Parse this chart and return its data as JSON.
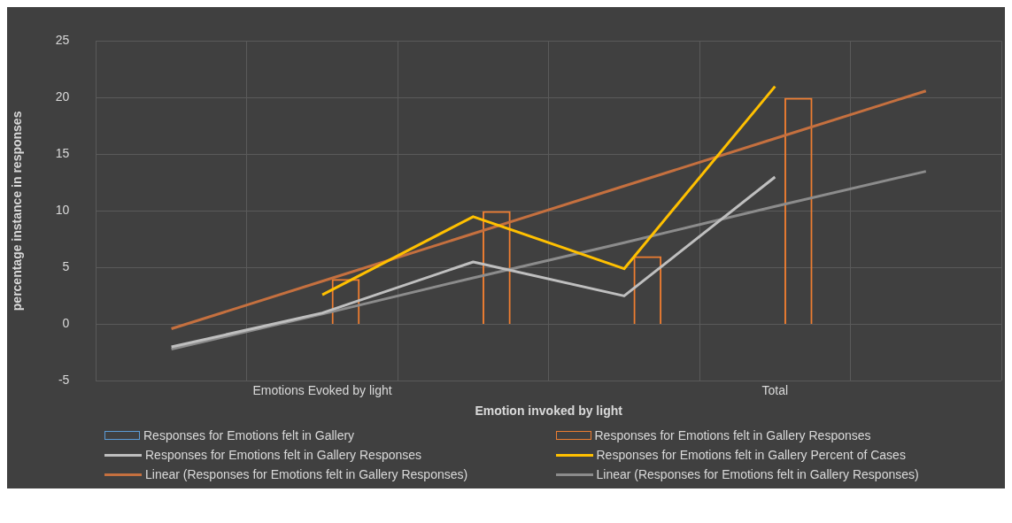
{
  "chart_data": {
    "type": "bar",
    "xlabel": "Emotion invoked by light",
    "ylabel": "percentage instance in responses",
    "categories": [
      null,
      "Emotions Evoked by light",
      null,
      null,
      "Total",
      null
    ],
    "series": [
      {
        "name": "Responses for Emotions felt in Gallery",
        "color": "#5b9bd5",
        "values": [
          null,
          null,
          null,
          null,
          null,
          null
        ]
      },
      {
        "name": "Responses for Emotions felt in Gallery Responses",
        "color": "#ed7d31",
        "values": [
          null,
          4,
          10,
          6,
          20,
          null
        ]
      },
      {
        "name": "Responses for Emotions felt in Gallery Responses",
        "type": "line",
        "color": "#bfbfbf",
        "values": [
          -2,
          1,
          5.5,
          2.5,
          13,
          null
        ]
      },
      {
        "name": "Responses for Emotions felt in Gallery Percent of Cases",
        "type": "line",
        "color": "#ffc000",
        "values": [
          null,
          2.6,
          9.5,
          4.9,
          21,
          null
        ]
      },
      {
        "name": "Linear (Responses for Emotions felt in Gallery Responses)",
        "type": "line",
        "color": "#c5703f",
        "values": [
          -0.4,
          3.8,
          8.0,
          12.2,
          16.4,
          20.6
        ]
      },
      {
        "name": "Linear (Responses for Emotions felt in Gallery Responses)",
        "type": "line",
        "color": "#8c8c8c",
        "values": [
          -2.2,
          0.9,
          4.1,
          7.2,
          10.4,
          13.5
        ]
      }
    ],
    "ylim": [
      -5,
      25
    ],
    "yticks": [
      -5,
      0,
      5,
      10,
      15,
      20,
      25
    ],
    "grid": true,
    "legend": "bottom"
  }
}
